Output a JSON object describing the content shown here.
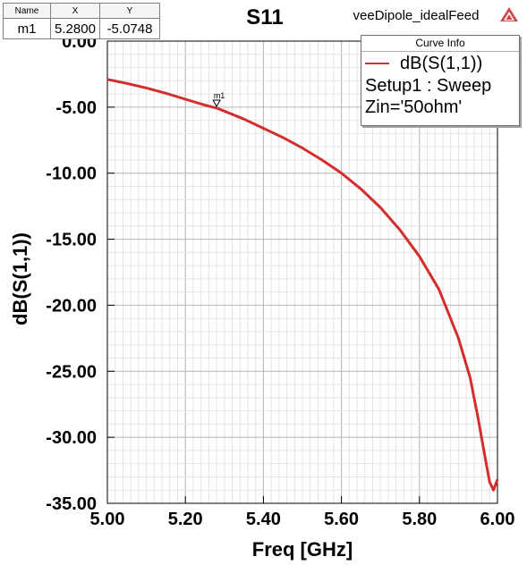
{
  "chart_data": {
    "type": "line",
    "title": "S11",
    "design_name": "veeDipole_idealFeed",
    "xlabel": "Freq [GHz]",
    "ylabel": "dB(S(1,1))",
    "xlim": [
      5.0,
      6.0
    ],
    "ylim": [
      -35.0,
      0.0
    ],
    "x_ticks": [
      5.0,
      5.2,
      5.4,
      5.6,
      5.8,
      6.0
    ],
    "x_tick_labels": [
      "5.00",
      "5.20",
      "5.40",
      "5.60",
      "5.80",
      "6.00"
    ],
    "y_ticks": [
      0,
      -5,
      -10,
      -15,
      -20,
      -25,
      -30,
      -35
    ],
    "y_tick_labels": [
      "0.00",
      "-5.00",
      "-10.00",
      "-15.00",
      "-20.00",
      "-25.00",
      "-30.00",
      "-35.00"
    ],
    "grid": true,
    "series": [
      {
        "name": "dB(S(1,1))",
        "color": "#d42d2d",
        "x": [
          5.0,
          5.05,
          5.1,
          5.15,
          5.2,
          5.25,
          5.28,
          5.3,
          5.35,
          5.4,
          5.45,
          5.5,
          5.55,
          5.6,
          5.65,
          5.7,
          5.75,
          5.8,
          5.85,
          5.9,
          5.93,
          5.95,
          5.97,
          5.98,
          5.99,
          6.0
        ],
        "y": [
          -2.9,
          -3.2,
          -3.55,
          -3.95,
          -4.4,
          -4.85,
          -5.07,
          -5.3,
          -5.9,
          -6.6,
          -7.3,
          -8.1,
          -9.0,
          -10.0,
          -11.2,
          -12.6,
          -14.3,
          -16.3,
          -18.8,
          -22.5,
          -25.5,
          -28.5,
          -31.8,
          -33.4,
          -34.0,
          -33.2
        ]
      }
    ],
    "legend": {
      "title": "Curve Info",
      "placement": "top-right",
      "entries": [
        "dB(S(1,1))",
        "Setup1 : Sweep",
        "Zin='50ohm'"
      ]
    },
    "markers": [
      {
        "name": "m1",
        "x": 5.28,
        "y": -5.0748,
        "x_text": "5.2800",
        "y_text": "-5.0748"
      }
    ],
    "marker_table": {
      "headers": [
        "Name",
        "X",
        "Y"
      ]
    }
  }
}
